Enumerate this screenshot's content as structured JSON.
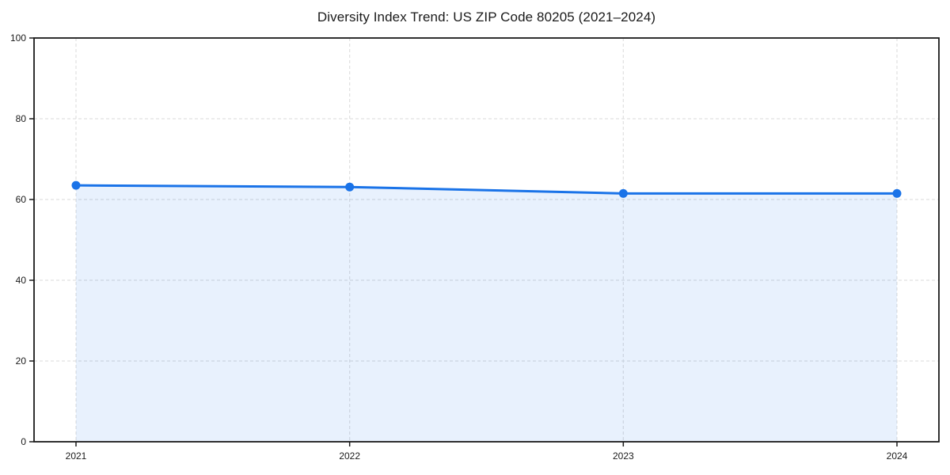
{
  "chart_data": {
    "type": "area",
    "title": "Diversity Index Trend: US ZIP Code 80205 (2021–2024)",
    "categories": [
      "2021",
      "2022",
      "2023",
      "2024"
    ],
    "series": [
      {
        "name": "Diversity Index",
        "values": [
          63.5,
          63.1,
          61.5,
          61.5
        ]
      }
    ],
    "xlabel": "",
    "ylabel": "",
    "ylim": [
      0,
      100
    ],
    "yticks": [
      0,
      20,
      40,
      60,
      80,
      100
    ],
    "grid": true,
    "grid_style": "dashed",
    "legend": false,
    "colors": {
      "line": "#1a73e8",
      "marker": "#1a73e8",
      "fill": "#1a73e8",
      "fill_opacity": 0.1,
      "grid": "#e0e0e0",
      "axis": "#1a1a1a",
      "text": "#1a1a1a",
      "background": "#ffffff"
    }
  }
}
